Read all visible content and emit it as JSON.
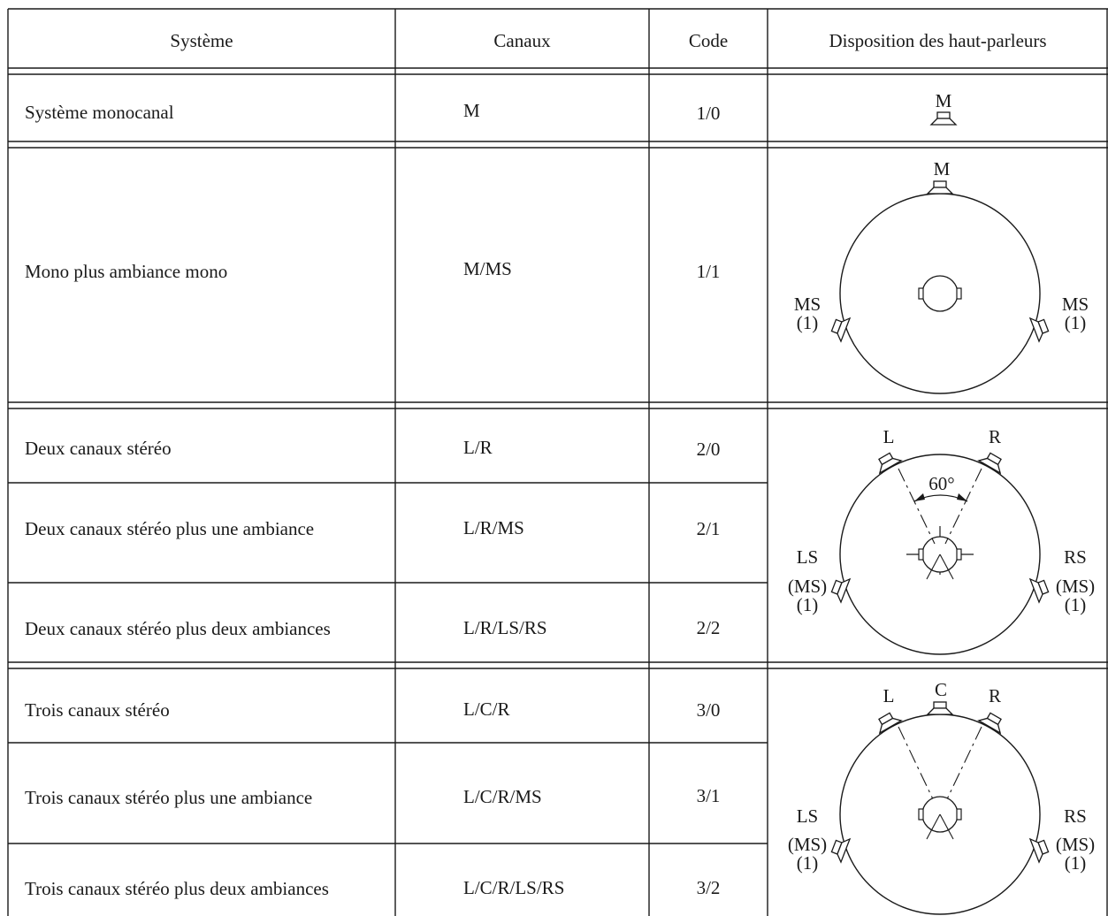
{
  "header": {
    "system": "Système",
    "channels": "Canaux",
    "code": "Code",
    "layout": "Disposition des haut-parleurs"
  },
  "rows": [
    {
      "system": "Système monocanal",
      "channels": "M",
      "code": "1/0"
    },
    {
      "system": "Mono plus ambiance mono",
      "channels": "M/MS",
      "code": "1/1"
    },
    {
      "system": "Deux canaux stéréo",
      "channels": "L/R",
      "code": "2/0"
    },
    {
      "system": "Deux canaux stéréo plus une ambiance",
      "channels": "L/R/MS",
      "code": "2/1"
    },
    {
      "system": "Deux canaux stéréo plus deux ambiances",
      "channels": "L/R/LS/RS",
      "code": "2/2"
    },
    {
      "system": "Trois canaux stéréo",
      "channels": "L/C/R",
      "code": "3/0"
    },
    {
      "system": "Trois canaux stéréo plus une ambiance",
      "channels": "L/C/R/MS",
      "code": "3/1"
    },
    {
      "system": "Trois canaux stéréo plus deux ambiances",
      "channels": "L/C/R/LS/RS",
      "code": "3/2"
    }
  ],
  "diagrams": {
    "mono": {
      "m": "M"
    },
    "mono_ambiance": {
      "m": "M",
      "ms_left": "MS",
      "ms_right": "MS",
      "note_left": "(1)",
      "note_right": "(1)"
    },
    "two_channel": {
      "l": "L",
      "r": "R",
      "angle": "60°",
      "ls": "LS",
      "rs": "RS",
      "ms_left": "(MS)",
      "ms_right": "(MS)",
      "note_left": "(1)",
      "note_right": "(1)"
    },
    "three_channel": {
      "l": "L",
      "c": "C",
      "r": "R",
      "ls": "LS",
      "rs": "RS",
      "ms_left": "(MS)",
      "ms_right": "(MS)",
      "note_left": "(1)",
      "note_right": "(1)"
    }
  },
  "icons": [
    "speaker-icon",
    "listener-head-icon",
    "angle-arc-icon"
  ]
}
